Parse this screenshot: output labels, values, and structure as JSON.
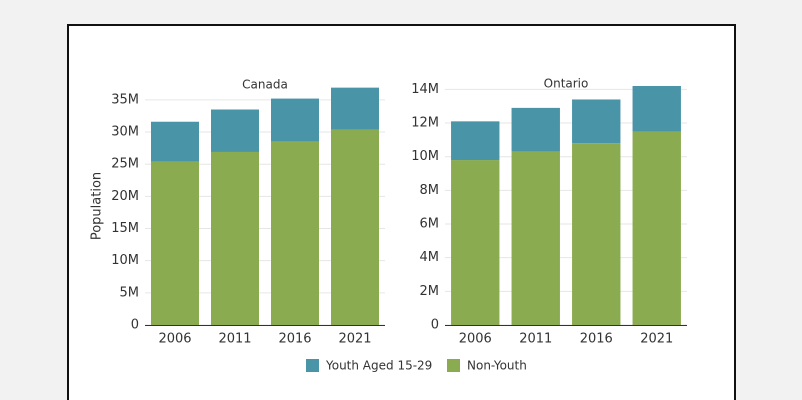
{
  "chart_data": [
    {
      "type": "stacked_bar",
      "title": "Canada",
      "y_label": "Population",
      "categories": [
        "2006",
        "2011",
        "2016",
        "2021"
      ],
      "series": [
        {
          "name": "Youth Aged 15-29",
          "color": "#4a94a8",
          "values": [
            6200000,
            6600000,
            6700000,
            6500000
          ]
        },
        {
          "name": "Non-Youth",
          "color": "#8aab4f",
          "values": [
            25400000,
            26900000,
            28500000,
            30400000
          ]
        }
      ],
      "ylim": [
        0,
        37000000
      ],
      "yticks": [
        0,
        {
          "value": 5000000,
          "label": "5M"
        },
        {
          "value": 10000000,
          "label": "10M"
        },
        {
          "value": 15000000,
          "label": "15M"
        },
        {
          "value": 20000000,
          "label": "20M"
        },
        {
          "value": 25000000,
          "label": "25M"
        },
        {
          "value": 30000000,
          "label": "30M"
        },
        {
          "value": 35000000,
          "label": "35M"
        }
      ],
      "grid": true
    },
    {
      "type": "stacked_bar",
      "title": "Ontario",
      "categories": [
        "2006",
        "2011",
        "2016",
        "2021"
      ],
      "series": [
        {
          "name": "Youth Aged 15-29",
          "color": "#4a94a8",
          "values": [
            2300000,
            2600000,
            2600000,
            2700000
          ]
        },
        {
          "name": "Non-Youth",
          "color": "#8aab4f",
          "values": [
            9800000,
            10300000,
            10800000,
            11500000
          ]
        }
      ],
      "ylim": [
        0,
        14200000
      ],
      "yticks": [
        0,
        {
          "value": 2000000,
          "label": "2M"
        },
        {
          "value": 4000000,
          "label": "4M"
        },
        {
          "value": 6000000,
          "label": "6M"
        },
        {
          "value": 8000000,
          "label": "8M"
        },
        {
          "value": 10000000,
          "label": "10M"
        },
        {
          "value": 12000000,
          "label": "12M"
        },
        {
          "value": 14000000,
          "label": "14M"
        }
      ],
      "grid": true
    }
  ]
}
